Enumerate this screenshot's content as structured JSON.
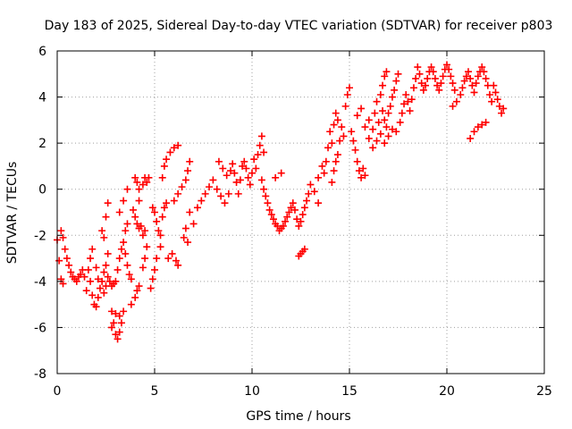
{
  "chart_data": {
    "type": "scatter",
    "title": "Day 183 of 2025, Sidereal Day-to-day VTEC variation (SDTVAR) for receiver p803",
    "xlabel": "GPS time / hours",
    "ylabel": "SDTVAR / TECUs",
    "xlim": [
      0,
      25
    ],
    "ylim": [
      -8,
      6
    ],
    "xticks": [
      0,
      5,
      10,
      15,
      20,
      25
    ],
    "yticks": [
      -8,
      -6,
      -4,
      -2,
      0,
      2,
      4,
      6
    ],
    "grid": true,
    "marker": "+",
    "colors": {
      "series": "#ff0000",
      "grid": "#a0a0a0",
      "axis": "#000000"
    },
    "series": [
      {
        "points": [
          [
            0.0,
            -2.2
          ],
          [
            0.1,
            -3.1
          ],
          [
            0.2,
            -3.9
          ],
          [
            0.3,
            -4.1
          ],
          [
            0.2,
            -1.8
          ],
          [
            0.3,
            -2.1
          ],
          [
            0.4,
            -2.6
          ],
          [
            0.5,
            -3.0
          ],
          [
            0.6,
            -3.3
          ],
          [
            0.7,
            -3.6
          ],
          [
            0.8,
            -3.8
          ],
          [
            0.9,
            -3.9
          ],
          [
            1.0,
            -4.0
          ],
          [
            1.1,
            -3.8
          ],
          [
            1.2,
            -3.7
          ],
          [
            1.3,
            -3.5
          ],
          [
            1.4,
            -3.8
          ],
          [
            1.5,
            -4.4
          ],
          [
            1.6,
            -3.5
          ],
          [
            1.7,
            -3.0
          ],
          [
            1.8,
            -2.6
          ],
          [
            1.7,
            -4.0
          ],
          [
            1.8,
            -4.6
          ],
          [
            1.9,
            -5.0
          ],
          [
            2.0,
            -5.1
          ],
          [
            2.1,
            -4.7
          ],
          [
            2.0,
            -3.4
          ],
          [
            2.1,
            -3.9
          ],
          [
            2.2,
            -4.3
          ],
          [
            2.3,
            -4.0
          ],
          [
            2.4,
            -3.6
          ],
          [
            2.5,
            -3.3
          ],
          [
            2.4,
            -4.5
          ],
          [
            2.5,
            -4.2
          ],
          [
            2.6,
            -3.8
          ],
          [
            2.7,
            -4.0
          ],
          [
            2.8,
            -4.2
          ],
          [
            2.9,
            -4.1
          ],
          [
            2.6,
            -2.8
          ],
          [
            2.4,
            -2.1
          ],
          [
            2.3,
            -1.8
          ],
          [
            2.5,
            -1.2
          ],
          [
            2.6,
            -0.6
          ],
          [
            2.8,
            -5.3
          ],
          [
            2.9,
            -5.8
          ],
          [
            3.0,
            -6.3
          ],
          [
            3.1,
            -6.5
          ],
          [
            3.2,
            -6.2
          ],
          [
            3.3,
            -5.8
          ],
          [
            3.4,
            -5.3
          ],
          [
            2.8,
            -6.0
          ],
          [
            3.0,
            -5.4
          ],
          [
            3.2,
            -5.5
          ],
          [
            3.0,
            -4.0
          ],
          [
            3.1,
            -3.5
          ],
          [
            3.2,
            -3.0
          ],
          [
            3.3,
            -2.6
          ],
          [
            3.4,
            -2.3
          ],
          [
            3.5,
            -1.8
          ],
          [
            3.6,
            -1.5
          ],
          [
            3.5,
            -2.8
          ],
          [
            3.6,
            -3.3
          ],
          [
            3.7,
            -3.7
          ],
          [
            3.8,
            -3.9
          ],
          [
            3.2,
            -1.0
          ],
          [
            3.4,
            -0.5
          ],
          [
            3.6,
            0.0
          ],
          [
            3.8,
            -5.0
          ],
          [
            4.0,
            -4.7
          ],
          [
            4.1,
            -4.4
          ],
          [
            4.2,
            -4.2
          ],
          [
            3.9,
            -0.9
          ],
          [
            4.0,
            -1.2
          ],
          [
            4.1,
            -1.5
          ],
          [
            4.2,
            -1.7
          ],
          [
            4.3,
            -1.6
          ],
          [
            4.0,
            0.5
          ],
          [
            4.1,
            0.3
          ],
          [
            4.2,
            0.0
          ],
          [
            4.2,
            -0.5
          ],
          [
            4.4,
            -3.4
          ],
          [
            4.5,
            -3.0
          ],
          [
            4.6,
            -2.5
          ],
          [
            4.5,
            -1.8
          ],
          [
            4.4,
            -2.0
          ],
          [
            4.6,
            0.3
          ],
          [
            4.7,
            0.5
          ],
          [
            4.5,
            0.5
          ],
          [
            4.4,
            0.2
          ],
          [
            4.8,
            -4.3
          ],
          [
            4.9,
            -3.9
          ],
          [
            5.0,
            -3.5
          ],
          [
            5.1,
            -3.0
          ],
          [
            4.9,
            -0.8
          ],
          [
            5.0,
            -1.0
          ],
          [
            5.1,
            -1.4
          ],
          [
            5.2,
            -1.8
          ],
          [
            5.3,
            -2.0
          ],
          [
            5.3,
            -2.5
          ],
          [
            5.4,
            -1.2
          ],
          [
            5.5,
            -0.8
          ],
          [
            5.6,
            -0.6
          ],
          [
            5.4,
            0.5
          ],
          [
            5.5,
            1.0
          ],
          [
            5.6,
            1.3
          ],
          [
            5.8,
            1.6
          ],
          [
            6.0,
            1.8
          ],
          [
            6.2,
            1.9
          ],
          [
            5.7,
            -3.0
          ],
          [
            5.9,
            -2.8
          ],
          [
            6.1,
            -3.1
          ],
          [
            6.2,
            -3.3
          ],
          [
            6.0,
            -0.5
          ],
          [
            6.2,
            -0.2
          ],
          [
            6.4,
            0.1
          ],
          [
            6.6,
            0.4
          ],
          [
            6.5,
            -2.1
          ],
          [
            6.6,
            -1.7
          ],
          [
            6.7,
            -2.3
          ],
          [
            6.7,
            0.8
          ],
          [
            6.8,
            1.2
          ],
          [
            6.8,
            -1.0
          ],
          [
            7.0,
            -1.5
          ],
          [
            7.2,
            -0.8
          ],
          [
            7.4,
            -0.5
          ],
          [
            7.6,
            -0.2
          ],
          [
            7.8,
            0.1
          ],
          [
            8.0,
            0.4
          ],
          [
            8.2,
            0.0
          ],
          [
            8.4,
            -0.3
          ],
          [
            8.6,
            -0.6
          ],
          [
            8.8,
            -0.2
          ],
          [
            8.3,
            1.2
          ],
          [
            8.5,
            0.9
          ],
          [
            8.7,
            0.6
          ],
          [
            8.9,
            0.8
          ],
          [
            9.0,
            1.1
          ],
          [
            9.1,
            0.7
          ],
          [
            9.2,
            0.3
          ],
          [
            9.3,
            -0.2
          ],
          [
            9.4,
            0.4
          ],
          [
            9.5,
            1.0
          ],
          [
            9.6,
            1.2
          ],
          [
            9.7,
            0.9
          ],
          [
            9.8,
            0.5
          ],
          [
            9.9,
            0.2
          ],
          [
            10.0,
            0.7
          ],
          [
            10.1,
            1.3
          ],
          [
            10.2,
            0.9
          ],
          [
            10.3,
            1.5
          ],
          [
            10.4,
            1.9
          ],
          [
            10.5,
            2.3
          ],
          [
            10.6,
            1.6
          ],
          [
            10.5,
            0.4
          ],
          [
            10.6,
            0.0
          ],
          [
            10.7,
            -0.3
          ],
          [
            10.8,
            -0.6
          ],
          [
            10.9,
            -0.9
          ],
          [
            11.0,
            -1.1
          ],
          [
            11.1,
            -1.3
          ],
          [
            11.2,
            -1.5
          ],
          [
            11.3,
            -1.6
          ],
          [
            11.4,
            -1.8
          ],
          [
            11.5,
            -1.7
          ],
          [
            11.6,
            -1.6
          ],
          [
            11.7,
            -1.4
          ],
          [
            11.8,
            -1.2
          ],
          [
            11.9,
            -1.0
          ],
          [
            12.0,
            -0.8
          ],
          [
            12.1,
            -0.6
          ],
          [
            12.2,
            -0.9
          ],
          [
            12.3,
            -1.3
          ],
          [
            12.4,
            -1.6
          ],
          [
            12.5,
            -1.4
          ],
          [
            12.6,
            -1.1
          ],
          [
            12.7,
            -0.8
          ],
          [
            12.8,
            -0.5
          ],
          [
            12.9,
            -0.2
          ],
          [
            11.5,
            0.7
          ],
          [
            11.2,
            0.5
          ],
          [
            12.4,
            -2.9
          ],
          [
            12.5,
            -2.8
          ],
          [
            12.6,
            -2.7
          ],
          [
            12.7,
            -2.6
          ],
          [
            13.0,
            0.2
          ],
          [
            13.2,
            -0.1
          ],
          [
            13.4,
            -0.6
          ],
          [
            13.4,
            0.5
          ],
          [
            13.6,
            1.0
          ],
          [
            13.7,
            0.7
          ],
          [
            13.8,
            1.2
          ],
          [
            13.9,
            1.8
          ],
          [
            14.0,
            2.5
          ],
          [
            14.1,
            2.0
          ],
          [
            14.2,
            2.8
          ],
          [
            14.3,
            3.3
          ],
          [
            14.4,
            3.0
          ],
          [
            14.1,
            0.3
          ],
          [
            14.2,
            0.8
          ],
          [
            14.3,
            1.2
          ],
          [
            14.4,
            1.5
          ],
          [
            14.5,
            2.1
          ],
          [
            14.6,
            2.7
          ],
          [
            14.7,
            2.3
          ],
          [
            14.8,
            3.6
          ],
          [
            14.9,
            4.1
          ],
          [
            15.0,
            4.4
          ],
          [
            15.1,
            2.5
          ],
          [
            15.2,
            2.1
          ],
          [
            15.3,
            1.7
          ],
          [
            15.4,
            1.2
          ],
          [
            15.5,
            0.8
          ],
          [
            15.6,
            0.5
          ],
          [
            15.7,
            0.9
          ],
          [
            15.8,
            0.6
          ],
          [
            15.4,
            3.2
          ],
          [
            15.6,
            3.5
          ],
          [
            15.8,
            2.7
          ],
          [
            16.0,
            3.0
          ],
          [
            16.2,
            2.6
          ],
          [
            16.3,
            3.3
          ],
          [
            16.4,
            3.8
          ],
          [
            16.5,
            2.9
          ],
          [
            16.6,
            4.1
          ],
          [
            16.7,
            4.5
          ],
          [
            16.8,
            4.9
          ],
          [
            16.9,
            5.1
          ],
          [
            16.7,
            3.4
          ],
          [
            16.8,
            3.0
          ],
          [
            16.9,
            2.7
          ],
          [
            17.0,
            3.3
          ],
          [
            17.1,
            3.6
          ],
          [
            17.2,
            4.0
          ],
          [
            17.3,
            4.3
          ],
          [
            17.4,
            4.7
          ],
          [
            17.5,
            5.0
          ],
          [
            17.4,
            2.5
          ],
          [
            17.6,
            2.9
          ],
          [
            17.7,
            3.3
          ],
          [
            17.8,
            3.7
          ],
          [
            17.9,
            4.1
          ],
          [
            18.0,
            3.8
          ],
          [
            18.1,
            3.4
          ],
          [
            18.2,
            3.9
          ],
          [
            18.3,
            4.4
          ],
          [
            18.4,
            4.8
          ],
          [
            18.5,
            5.3
          ],
          [
            18.6,
            5.0
          ],
          [
            18.7,
            4.6
          ],
          [
            18.8,
            4.3
          ],
          [
            18.9,
            4.5
          ],
          [
            19.0,
            4.8
          ],
          [
            19.1,
            5.1
          ],
          [
            19.2,
            5.3
          ],
          [
            19.3,
            5.1
          ],
          [
            19.4,
            4.8
          ],
          [
            19.5,
            4.5
          ],
          [
            19.6,
            4.3
          ],
          [
            19.7,
            4.6
          ],
          [
            19.8,
            4.9
          ],
          [
            19.9,
            5.2
          ],
          [
            20.0,
            5.4
          ],
          [
            20.1,
            5.2
          ],
          [
            20.2,
            4.9
          ],
          [
            20.3,
            4.6
          ],
          [
            20.4,
            4.3
          ],
          [
            20.3,
            3.6
          ],
          [
            20.5,
            3.8
          ],
          [
            20.7,
            4.1
          ],
          [
            20.8,
            4.4
          ],
          [
            20.9,
            4.7
          ],
          [
            21.0,
            4.9
          ],
          [
            21.1,
            5.1
          ],
          [
            21.2,
            4.8
          ],
          [
            21.3,
            4.5
          ],
          [
            21.4,
            4.2
          ],
          [
            21.5,
            4.6
          ],
          [
            21.6,
            4.9
          ],
          [
            21.7,
            5.1
          ],
          [
            21.8,
            5.3
          ],
          [
            21.9,
            5.1
          ],
          [
            22.0,
            4.8
          ],
          [
            22.1,
            4.5
          ],
          [
            22.2,
            4.1
          ],
          [
            22.3,
            3.8
          ],
          [
            22.4,
            4.5
          ],
          [
            22.5,
            4.2
          ],
          [
            22.6,
            3.9
          ],
          [
            22.7,
            3.6
          ],
          [
            22.8,
            3.3
          ],
          [
            22.9,
            3.5
          ],
          [
            21.2,
            2.2
          ],
          [
            21.4,
            2.5
          ],
          [
            21.6,
            2.7
          ],
          [
            21.8,
            2.8
          ],
          [
            22.0,
            2.9
          ],
          [
            16.0,
            2.2
          ],
          [
            16.2,
            1.8
          ],
          [
            16.4,
            2.1
          ],
          [
            16.6,
            2.4
          ],
          [
            16.8,
            2.0
          ],
          [
            17.0,
            2.3
          ],
          [
            17.2,
            2.6
          ]
        ]
      }
    ]
  }
}
